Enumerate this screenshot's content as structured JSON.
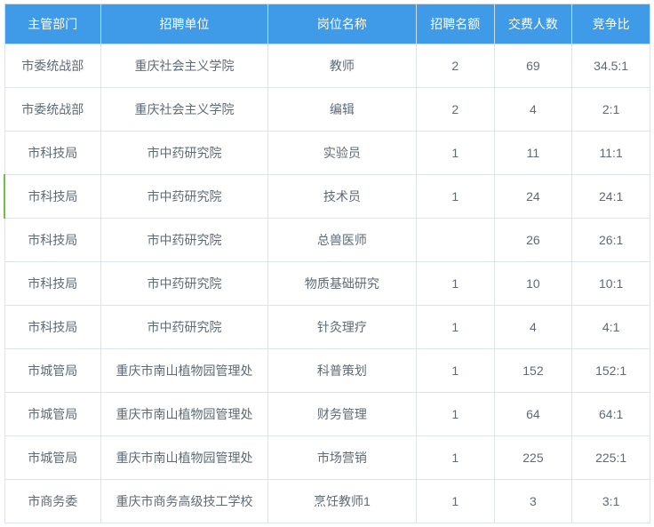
{
  "table": {
    "columns": [
      {
        "label": "主管部门",
        "class": "col-0"
      },
      {
        "label": "招聘单位",
        "class": "col-1"
      },
      {
        "label": "岗位名称",
        "class": "col-2"
      },
      {
        "label": "招聘名额",
        "class": "col-3"
      },
      {
        "label": "交费人数",
        "class": "col-4"
      },
      {
        "label": "竞争比",
        "class": "col-5"
      }
    ],
    "rows": [
      {
        "cells": [
          "市委统战部",
          "重庆社会主义学院",
          "教师",
          "2",
          "69",
          "34.5:1"
        ],
        "highlight": false
      },
      {
        "cells": [
          "市委统战部",
          "重庆社会主义学院",
          "编辑",
          "2",
          "4",
          "2:1"
        ],
        "highlight": false
      },
      {
        "cells": [
          "市科技局",
          "市中药研究院",
          "实验员",
          "1",
          "11",
          "11:1"
        ],
        "highlight": false
      },
      {
        "cells": [
          "市科技局",
          "市中药研究院",
          "技术员",
          "1",
          "24",
          "24:1"
        ],
        "highlight": true
      },
      {
        "cells": [
          "市科技局",
          "市中药研究院",
          "总兽医师",
          "",
          "26",
          "26:1"
        ],
        "highlight": false
      },
      {
        "cells": [
          "市科技局",
          "市中药研究院",
          "物质基础研究",
          "1",
          "10",
          "10:1"
        ],
        "highlight": false
      },
      {
        "cells": [
          "市科技局",
          "市中药研究院",
          "针灸理疗",
          "1",
          "4",
          "4:1"
        ],
        "highlight": false
      },
      {
        "cells": [
          "市城管局",
          "重庆市南山植物园管理处",
          "科普策划",
          "1",
          "152",
          "152:1"
        ],
        "highlight": false
      },
      {
        "cells": [
          "市城管局",
          "重庆市南山植物园管理处",
          "财务管理",
          "1",
          "64",
          "64:1"
        ],
        "highlight": false
      },
      {
        "cells": [
          "市城管局",
          "重庆市南山植物园管理处",
          "市场营销",
          "1",
          "225",
          "225:1"
        ],
        "highlight": false
      },
      {
        "cells": [
          "市商务委",
          "重庆市商务高级技工学校",
          "烹饪教师1",
          "1",
          "3",
          "3:1"
        ],
        "highlight": false
      }
    ],
    "header_bg": "#3f9ae8",
    "header_color": "#ffffff",
    "cell_color": "#5e6a75",
    "border_color": "#dde4ea",
    "highlight_color": "#6fbf4a"
  }
}
